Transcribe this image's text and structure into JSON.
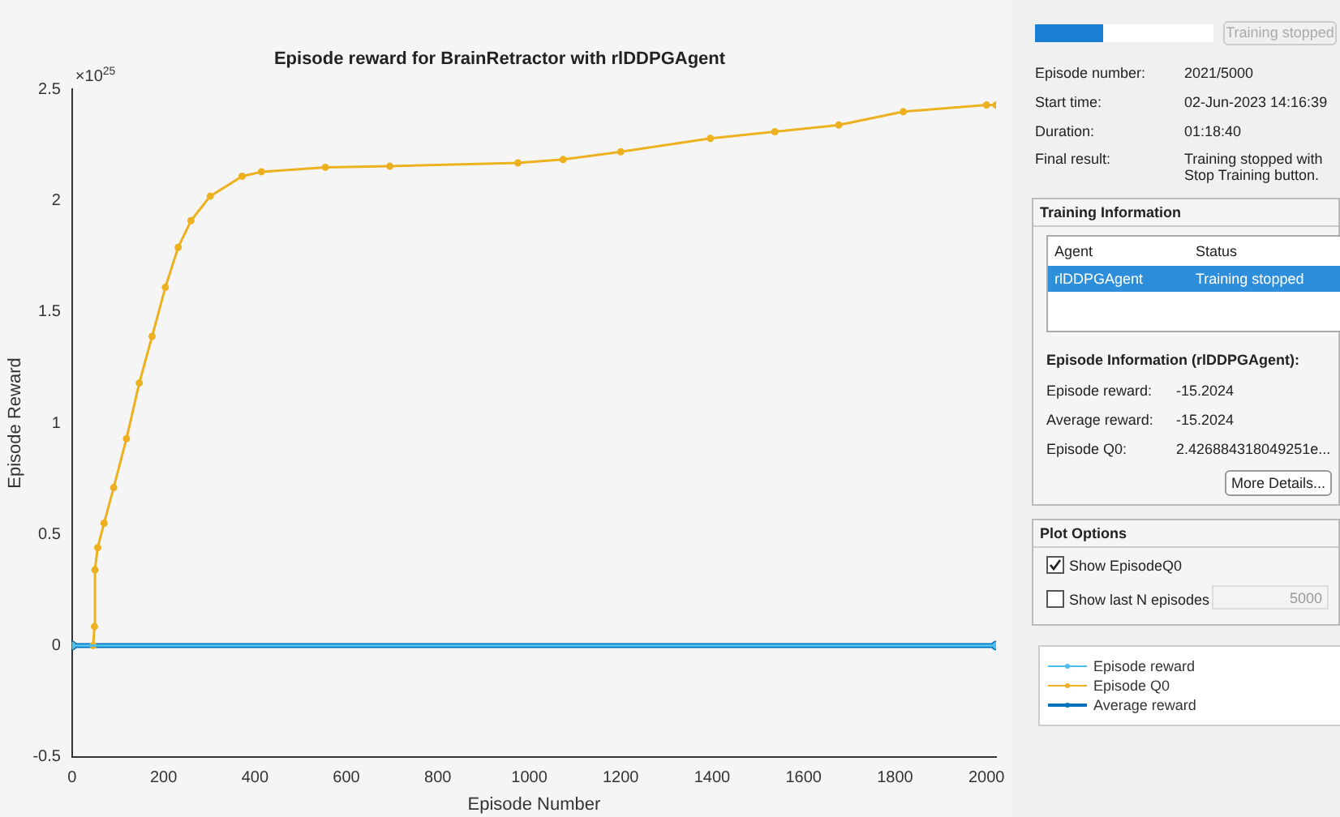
{
  "chart_data": [
    {
      "type": "line",
      "title": "Episode reward for BrainRetractor with rlDDPGAgent",
      "xlabel": "Episode Number",
      "ylabel": "Episode Reward",
      "annotations": [
        "×10$^{25}$"
      ],
      "xlim": [
        0,
        2021
      ],
      "xticks": [
        0,
        200,
        400,
        600,
        800,
        1000,
        1200,
        1400,
        1600,
        1800,
        2000
      ],
      "ylim": [
        -0.5,
        2.5
      ],
      "yticks": [
        -0.5,
        0,
        0.5,
        1,
        1.5,
        2,
        2.5
      ],
      "grid": false,
      "legend": "right",
      "marker": "circle",
      "line_style": "solid",
      "series": [
        {
          "name": "Episode reward",
          "color": "#4dbeee",
          "x": [
            0,
            2021
          ],
          "values": [
            0,
            0
          ]
        },
        {
          "name": "Episode Q0",
          "color": "#edb120",
          "x": [
            0,
            46,
            49,
            50,
            56,
            70,
            91,
            119,
            147,
            175,
            204,
            232,
            260,
            302,
            372,
            414,
            554,
            695,
            975,
            1074,
            1200,
            1396,
            1537,
            1677,
            1818,
            2000,
            2021
          ],
          "values": [
            0,
            0,
            0.085,
            0.34,
            0.44,
            0.55,
            0.71,
            0.93,
            1.18,
            1.39,
            1.61,
            1.79,
            1.91,
            2.02,
            2.11,
            2.13,
            2.15,
            2.155,
            2.17,
            2.185,
            2.22,
            2.28,
            2.31,
            2.34,
            2.4,
            2.43,
            2.43
          ]
        },
        {
          "name": "Average reward",
          "color": "#0072bd",
          "x": [
            0,
            2021
          ],
          "values": [
            0,
            0
          ]
        }
      ]
    },
    {
      "type": "other",
      "annotations": [
        "Training stopped",
        "Episode number:",
        "2021/5000",
        "Start time:",
        "02-Jun-2023 14:16:39",
        "Duration:",
        "01:18:40",
        "Final result:",
        "Training stopped with Stop Training button.",
        "Training Information",
        "Agent",
        "Status",
        "rlDDPGAgent",
        "Training stopped",
        "Episode Information (rlDDPGAgent):",
        "Episode reward:",
        "-15.2024",
        "Average reward:",
        "-15.2024",
        "Episode Q0:",
        "2.426884318049251e...",
        "More Details...",
        "Plot Options",
        "Show EpisodeQ0",
        "Show last N episodes",
        "5000"
      ]
    }
  ]
}
